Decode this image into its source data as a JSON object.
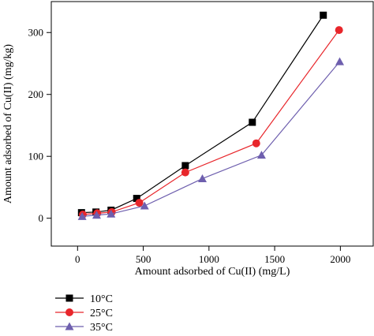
{
  "chart_data": {
    "type": "line",
    "xlabel": "Amount adsorbed of Cu(II) (mg/L)",
    "ylabel": "Amount adsorbed of Cu(II) (mg/kg)",
    "xlim": [
      -200,
      2250
    ],
    "ylim": [
      -45,
      350
    ],
    "xticks": [
      0,
      500,
      1000,
      1500,
      2000
    ],
    "yticks": [
      0,
      100,
      200,
      300
    ],
    "grid": false,
    "legend_position": "bottom-left, below plot",
    "series": [
      {
        "name": "10°C",
        "color": "#000000",
        "marker": "square",
        "x": [
          30,
          140,
          255,
          450,
          820,
          1330,
          1870
        ],
        "y": [
          9,
          10,
          13,
          32,
          85,
          155,
          328
        ]
      },
      {
        "name": "25°C",
        "color": "#e8262b",
        "marker": "circle",
        "x": [
          40,
          150,
          260,
          470,
          820,
          1360,
          1990
        ],
        "y": [
          6,
          8,
          10,
          25,
          74,
          121,
          304
        ]
      },
      {
        "name": "35°C",
        "color": "#6e5fae",
        "marker": "triangle",
        "x": [
          35,
          145,
          255,
          510,
          950,
          1400,
          1995
        ],
        "y": [
          3,
          5,
          7,
          20,
          64,
          102,
          253
        ]
      }
    ]
  }
}
